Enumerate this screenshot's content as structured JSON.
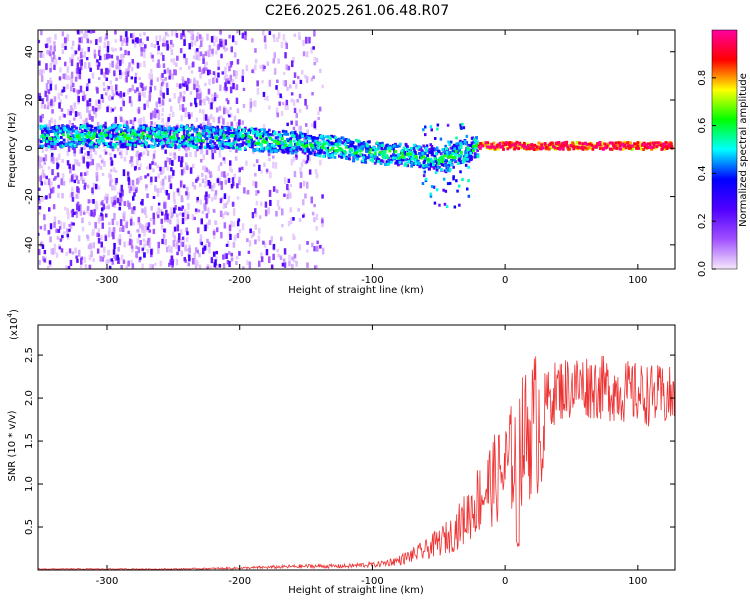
{
  "title": "C2E6.2025.261.06.48.R07",
  "chart_data": [
    {
      "type": "heatmap",
      "xlabel": "Height of straight line (km)",
      "ylabel": "Frequency (Hz)",
      "xlim": [
        -352,
        128
      ],
      "ylim": [
        -50,
        49
      ],
      "xticks": [
        -300,
        -200,
        -100,
        0,
        100
      ],
      "yticks": [
        -40,
        -20,
        0,
        20,
        40
      ],
      "xtick_labels": [
        "-300",
        "-200",
        "-100",
        "0",
        "100"
      ],
      "ytick_labels": [
        "-40",
        "-20",
        "0",
        "20",
        "40"
      ],
      "ridge": {
        "x": [
          -350,
          -300,
          -250,
          -200,
          -150,
          -100,
          -70,
          -50,
          -40,
          -30,
          -20,
          0,
          50,
          100,
          128
        ],
        "freq": [
          5,
          5,
          5,
          4,
          2,
          -2,
          -3,
          -5,
          -3,
          -1,
          1,
          1,
          1,
          1,
          1
        ]
      },
      "colorbar": {
        "label": "Normalized spectral amplitude",
        "range": [
          0,
          1
        ],
        "ticks": [
          0.0,
          0.2,
          0.4,
          0.6,
          0.8
        ],
        "tick_labels": [
          "0.0",
          "0.2",
          "0.4",
          "0.6",
          "0.8"
        ],
        "colormap": [
          "#f6e8fb",
          "#a050ff",
          "#5000ff",
          "#0000ff",
          "#00ffff",
          "#00ff00",
          "#ffff00",
          "#ff0000",
          "#ff00a0"
        ]
      }
    },
    {
      "type": "line",
      "xlabel": "Height of straight line (km)",
      "ylabel": "SNR (10 * v/v)",
      "scale_label": "(x10",
      "scale_exponent": "4",
      "xlim": [
        -352,
        128
      ],
      "ylim": [
        0,
        2.85
      ],
      "xticks": [
        -300,
        -200,
        -100,
        0,
        100
      ],
      "yticks": [
        0.5,
        1.0,
        1.5,
        2.0,
        2.5
      ],
      "xtick_labels": [
        "-300",
        "-200",
        "-100",
        "0",
        "100"
      ],
      "ytick_labels": [
        "0.5",
        "1.0",
        "1.5",
        "2.0",
        "2.5"
      ],
      "color": "#ee3333",
      "envelope": {
        "x": [
          -352,
          -300,
          -250,
          -200,
          -150,
          -120,
          -100,
          -80,
          -60,
          -40,
          -30,
          -20,
          -10,
          0,
          10,
          20,
          30,
          40,
          60,
          80,
          100,
          128
        ],
        "y": [
          0.01,
          0.01,
          0.01,
          0.02,
          0.04,
          0.04,
          0.06,
          0.12,
          0.25,
          0.45,
          0.65,
          0.9,
          1.1,
          1.25,
          1.55,
          1.8,
          1.95,
          2.1,
          2.15,
          2.1,
          2.05,
          2.0
        ]
      }
    }
  ]
}
